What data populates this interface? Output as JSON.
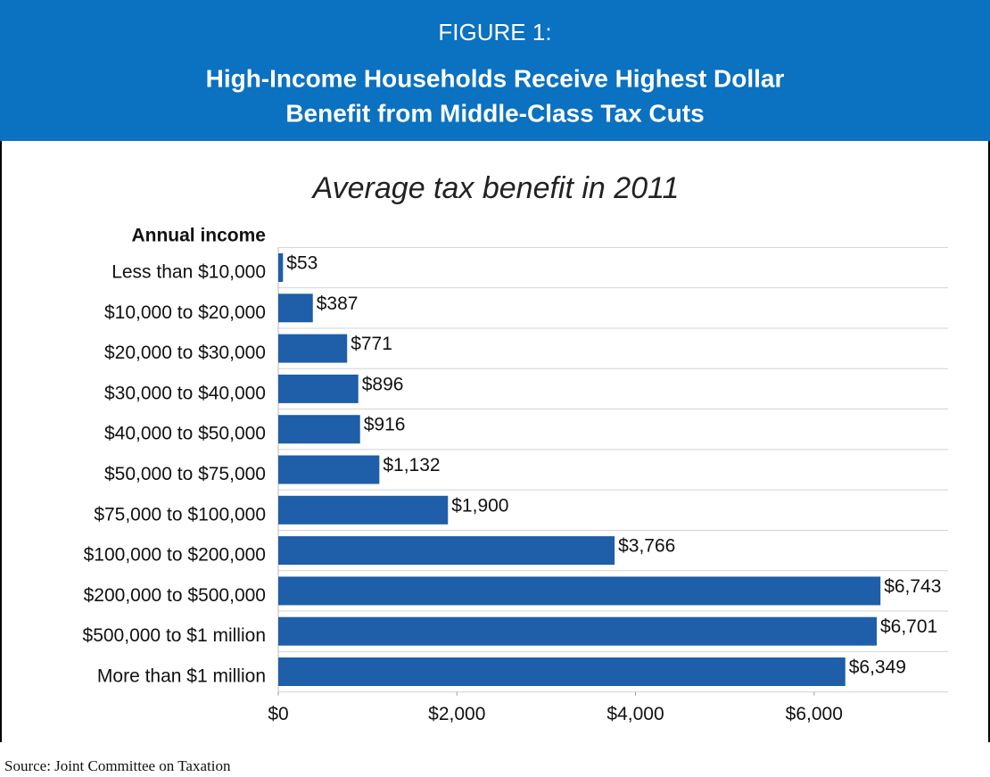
{
  "header": {
    "figure": "FIGURE 1:",
    "title": [
      "High-Income Households Receive Highest Dollar",
      "Benefit from Middle-Class Tax Cuts"
    ]
  },
  "chart_data": {
    "type": "hbar",
    "title": "Average tax benefit in 2011",
    "y_label": "Annual income",
    "categories": [
      "Less than $10,000",
      "$10,000 to $20,000",
      "$20,000 to $30,000",
      "$30,000 to $40,000",
      "$40,000 to $50,000",
      "$50,000 to $75,000",
      "$75,000 to $100,000",
      "$100,000 to $200,000",
      "$200,000 to $500,000",
      "$500,000 to $1 million",
      "More than $1 million"
    ],
    "values": [
      53,
      387,
      771,
      896,
      916,
      1132,
      1900,
      3766,
      6743,
      6701,
      6349
    ],
    "value_labels": [
      "$53",
      "$387",
      "$771",
      "$896",
      "$916",
      "$1,132",
      "$1,900",
      "$3,766",
      "$6,743",
      "$6,701",
      "$6,349"
    ],
    "color": "#1f5ea8",
    "xlim": [
      0,
      7500
    ],
    "xticks": [
      {
        "value": 0,
        "label": "$0"
      },
      {
        "value": 2000,
        "label": "$2,000"
      },
      {
        "value": 4000,
        "label": "$4,000"
      },
      {
        "value": 6000,
        "label": "$6,000"
      }
    ]
  },
  "source": "Source: Joint Committee on Taxation"
}
